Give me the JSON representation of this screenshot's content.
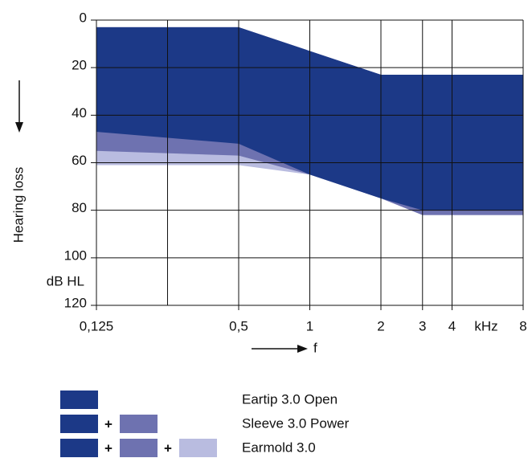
{
  "chart_data": {
    "type": "area-range",
    "y_label": "Hearing loss",
    "y_unit": "dB HL",
    "x_label": "f",
    "x_unit": "kHz",
    "log_x": true,
    "grid": true,
    "x": [
      0.125,
      0.5,
      1,
      2,
      3,
      8
    ],
    "upper": [
      3,
      3,
      13,
      23,
      23,
      23
    ],
    "series": [
      {
        "name": "Eartip 3.0 Open",
        "color": "#1c3987",
        "values": [
          47,
          52,
          65,
          75,
          80,
          80
        ]
      },
      {
        "name": "Sleeve 3.0 Power",
        "color": "#6e72b0",
        "values": [
          55,
          57,
          65,
          75,
          82,
          82
        ]
      },
      {
        "name": "Earmold 3.0",
        "color": "#b9bce0",
        "values": [
          61,
          61,
          65,
          75,
          82,
          82
        ]
      }
    ],
    "legend_joiner": "+",
    "xlim": [
      0.125,
      8
    ],
    "xticks": [
      {
        "value": 0.125,
        "label": "0,125"
      },
      {
        "value": 0.5,
        "label": "0,5"
      },
      1,
      2,
      3,
      4,
      8
    ],
    "xgrid": [
      0.25,
      0.5,
      1,
      2,
      3,
      4
    ],
    "ylim": [
      0,
      120
    ],
    "yticks": [
      0,
      20,
      40,
      60,
      80,
      100,
      120
    ]
  }
}
